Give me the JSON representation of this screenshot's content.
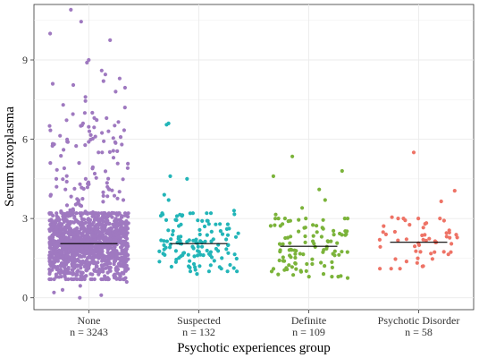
{
  "chart_data": {
    "type": "scatter",
    "subtype": "jitter strip plot with median lines",
    "xlabel": "Psychotic experiences group",
    "ylabel": "Serum toxoplasma",
    "ylim": [
      -0.45,
      11.1
    ],
    "yticks": [
      0,
      3,
      6,
      9
    ],
    "grid": true,
    "legend": "none",
    "categories": [
      {
        "name": "None",
        "count_label": "n = 3243",
        "n": 3243,
        "color": "#9f79c0",
        "median": 2.05,
        "values": [
          10.9,
          10.45,
          10.0,
          9.75,
          9.0,
          8.9,
          8.6,
          8.45,
          8.3,
          8.2,
          8.1,
          8.05,
          7.95,
          7.8,
          7.6,
          7.45,
          7.3,
          7.2,
          7.0,
          6.8,
          6.6,
          6.45,
          6.3,
          6.1,
          5.9,
          5.75,
          5.5,
          5.3,
          5.1,
          4.9,
          4.7,
          4.5,
          4.3,
          4.1,
          3.9,
          3.7,
          3.5,
          3.3,
          3.1,
          0.95,
          0.8,
          0.6,
          0.45,
          0.3,
          0.2,
          0.1,
          0.0
        ],
        "spread": {
          "dense_low": 0.7,
          "dense_high": 3.2,
          "q1": 1.55,
          "q3": 2.55,
          "sparse_high": 7.0
        }
      },
      {
        "name": "Suspected",
        "count_label": "n = 132",
        "n": 132,
        "color": "#22b5b8",
        "median": 2.05,
        "values": [
          6.6,
          6.55,
          4.6,
          4.5,
          3.9,
          3.7,
          3.3,
          3.2,
          3.1,
          0.9,
          1.0,
          1.1
        ],
        "spread": {
          "dense_low": 1.0,
          "dense_high": 3.2,
          "q1": 1.6,
          "q3": 2.5,
          "sparse_high": 3.5
        }
      },
      {
        "name": "Definite",
        "count_label": "n = 109",
        "n": 109,
        "color": "#7bb33a",
        "median": 1.95,
        "values": [
          5.35,
          4.8,
          4.6,
          4.1,
          3.7,
          3.4,
          3.15,
          0.75,
          0.8,
          0.9
        ],
        "spread": {
          "dense_low": 0.8,
          "dense_high": 3.0,
          "q1": 1.45,
          "q3": 2.4,
          "sparse_high": 3.2
        }
      },
      {
        "name": "Psychotic Disorder",
        "count_label": "n = 58",
        "n": 58,
        "color": "#ee7366",
        "median": 2.1,
        "values": [
          5.5,
          4.05,
          3.65,
          3.05,
          3.0,
          1.1,
          1.2
        ],
        "spread": {
          "dense_low": 1.1,
          "dense_high": 3.0,
          "q1": 1.6,
          "q3": 2.5,
          "sparse_high": 3.1
        }
      }
    ]
  }
}
